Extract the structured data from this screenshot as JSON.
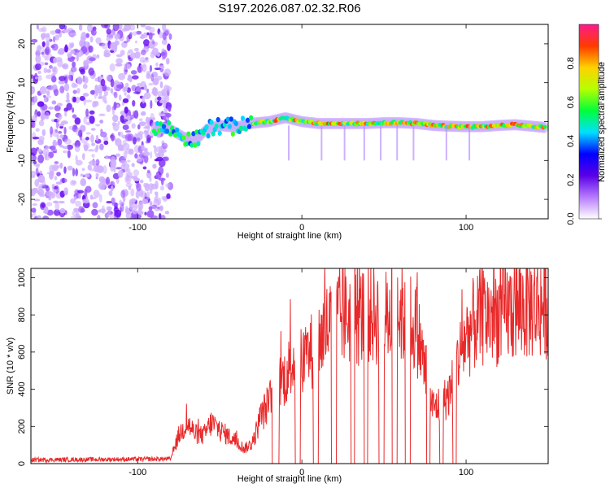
{
  "title": "S197.2026.087.02.32.R06",
  "colors": {
    "snr_line": "#e8292a",
    "axis": "#000000",
    "background": "#ffffff"
  },
  "chart_data": [
    {
      "type": "heatmap",
      "xlabel": "Height of straight line (km)",
      "ylabel": "Frequency (Hz)",
      "xlim": [
        -165,
        150
      ],
      "ylim": [
        -25,
        25
      ],
      "xticks": [
        -100,
        0,
        100
      ],
      "xtick_labels": [
        "-100",
        "0",
        "100"
      ],
      "yticks": [
        -20,
        -10,
        0,
        10,
        20
      ],
      "ytick_labels": [
        "-20",
        "-10",
        "0",
        "10",
        "20"
      ],
      "colorbar": {
        "label": "Normalized spectral amplitude",
        "range": [
          0,
          1
        ],
        "ticks": [
          0.0,
          0.2,
          0.4,
          0.6,
          0.8
        ],
        "tick_labels": [
          "0.0",
          "0.2",
          "0.4",
          "0.6",
          "0.8"
        ],
        "colormap": [
          "#ffffff",
          "#b77bff",
          "#5a00e6",
          "#0000ff",
          "#00e0ff",
          "#00ff3a",
          "#b4ff00",
          "#ffd200",
          "#ff3a00",
          "#ff1a8c"
        ]
      },
      "ridge_points": [
        [
          -88,
          -1.5
        ],
        [
          -80,
          -2
        ],
        [
          -72,
          -4
        ],
        [
          -65,
          -5
        ],
        [
          -58,
          -2
        ],
        [
          -50,
          -1
        ],
        [
          -40,
          -1.5
        ],
        [
          -32,
          -0.5
        ],
        [
          -20,
          0
        ],
        [
          -10,
          1
        ],
        [
          0,
          0
        ],
        [
          10,
          -0.5
        ],
        [
          20,
          -0.5
        ],
        [
          30,
          -0.5
        ],
        [
          40,
          -0.5
        ],
        [
          50,
          -0.3
        ],
        [
          60,
          -0.3
        ],
        [
          70,
          -0.5
        ],
        [
          80,
          -1
        ],
        [
          90,
          -1.2
        ],
        [
          100,
          -1.3
        ],
        [
          110,
          -1.3
        ],
        [
          120,
          -1
        ],
        [
          130,
          -0.8
        ],
        [
          140,
          -1.2
        ],
        [
          148,
          -1.5
        ]
      ]
    },
    {
      "type": "line",
      "xlabel": "Height of straight line (km)",
      "ylabel": "SNR (10 * v/v)",
      "xlim": [
        -165,
        150
      ],
      "ylim": [
        0,
        1050
      ],
      "xticks": [
        -100,
        0,
        100
      ],
      "xtick_labels": [
        "-100",
        "0",
        "100"
      ],
      "yticks": [
        0,
        200,
        400,
        600,
        800,
        1000
      ],
      "ytick_labels": [
        "0",
        "200",
        "400",
        "600",
        "800",
        "1000"
      ],
      "series": [
        {
          "name": "SNR",
          "envelope": [
            [
              -165,
              20
            ],
            [
              -80,
              25
            ],
            [
              -75,
              150
            ],
            [
              -70,
              220
            ],
            [
              -65,
              160
            ],
            [
              -60,
              150
            ],
            [
              -55,
              220
            ],
            [
              -50,
              180
            ],
            [
              -45,
              150
            ],
            [
              -40,
              120
            ],
            [
              -35,
              80
            ],
            [
              -30,
              110
            ],
            [
              -25,
              250
            ],
            [
              -20,
              330
            ],
            [
              -15,
              420
            ],
            [
              -10,
              470
            ],
            [
              -5,
              560
            ],
            [
              0,
              540
            ],
            [
              5,
              600
            ],
            [
              10,
              650
            ],
            [
              15,
              730
            ],
            [
              20,
              780
            ],
            [
              25,
              800
            ],
            [
              30,
              800
            ],
            [
              35,
              780
            ],
            [
              40,
              820
            ],
            [
              45,
              800
            ],
            [
              50,
              780
            ],
            [
              55,
              790
            ],
            [
              60,
              810
            ],
            [
              65,
              780
            ],
            [
              70,
              720
            ],
            [
              73,
              600
            ],
            [
              75,
              500
            ],
            [
              78,
              350
            ],
            [
              80,
              300
            ],
            [
              85,
              320
            ],
            [
              90,
              380
            ],
            [
              93,
              470
            ],
            [
              95,
              560
            ],
            [
              100,
              680
            ],
            [
              105,
              750
            ],
            [
              110,
              790
            ],
            [
              120,
              800
            ],
            [
              130,
              830
            ],
            [
              140,
              850
            ],
            [
              150,
              860
            ]
          ],
          "dropouts": [
            [
              -18,
              -14
            ],
            [
              -4,
              -1
            ],
            [
              7,
              10
            ],
            [
              18,
              21
            ],
            [
              30,
              32
            ],
            [
              38,
              40
            ],
            [
              47,
              50
            ],
            [
              55,
              58
            ],
            [
              63,
              66
            ],
            [
              76,
              78
            ],
            [
              84,
              86
            ],
            [
              92,
              94
            ]
          ]
        }
      ]
    }
  ]
}
